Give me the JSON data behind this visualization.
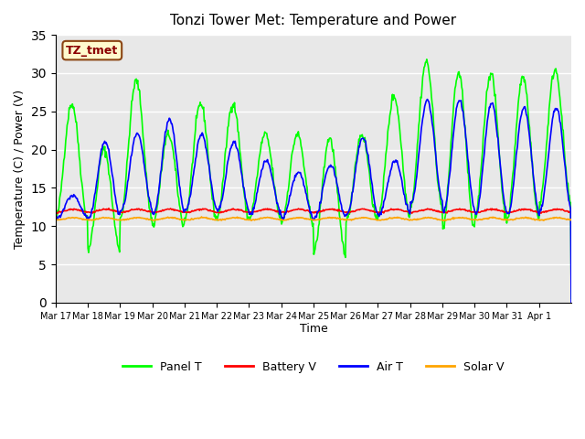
{
  "title": "Tonzi Tower Met: Temperature and Power",
  "xlabel": "Time",
  "ylabel": "Temperature (C) / Power (V)",
  "annotation": "TZ_tmet",
  "ylim": [
    0,
    35
  ],
  "yticks": [
    0,
    5,
    10,
    15,
    20,
    25,
    30,
    35
  ],
  "x_tick_labels": [
    "Mar 17",
    "Mar 18",
    "Mar 19",
    "Mar 20",
    "Mar 21",
    "Mar 22",
    "Mar 23",
    "Mar 24",
    "Mar 25",
    "Mar 26",
    "Mar 27",
    "Mar 28",
    "Mar 29",
    "Mar 30",
    "Mar 31",
    "Apr 1"
  ],
  "legend_labels": [
    "Panel T",
    "Battery V",
    "Air T",
    "Solar V"
  ],
  "legend_colors": [
    "#00FF00",
    "#FF0000",
    "#0000FF",
    "#FFA500"
  ],
  "bg_color": "#E8E8E8",
  "grid_color": "#FFFFFF",
  "num_days": 16,
  "panel_t_peaks": [
    26.0,
    20.0,
    29.0,
    22.0,
    26.0,
    26.0,
    22.0,
    22.0,
    21.5,
    22.0,
    27.0,
    31.5,
    30.0,
    30.0,
    29.5,
    30.5
  ],
  "panel_t_troughs": [
    11.0,
    7.0,
    11.0,
    10.0,
    11.0,
    11.0,
    11.0,
    10.5,
    6.5,
    10.5,
    11.5,
    12.5,
    9.5,
    11.0,
    11.0,
    13.0
  ],
  "air_t_peaks": [
    14.0,
    21.0,
    22.0,
    24.0,
    22.0,
    21.0,
    18.5,
    17.0,
    18.0,
    21.5,
    18.5,
    26.5,
    26.5,
    26.0,
    25.5,
    25.5
  ],
  "air_t_troughs": [
    11.0,
    11.0,
    12.0,
    11.5,
    12.0,
    12.0,
    11.5,
    11.0,
    11.0,
    11.5,
    11.5,
    13.0,
    12.0,
    11.5,
    11.5,
    12.0
  ],
  "battery_v_base": 11.8,
  "solar_v_base": 10.8
}
